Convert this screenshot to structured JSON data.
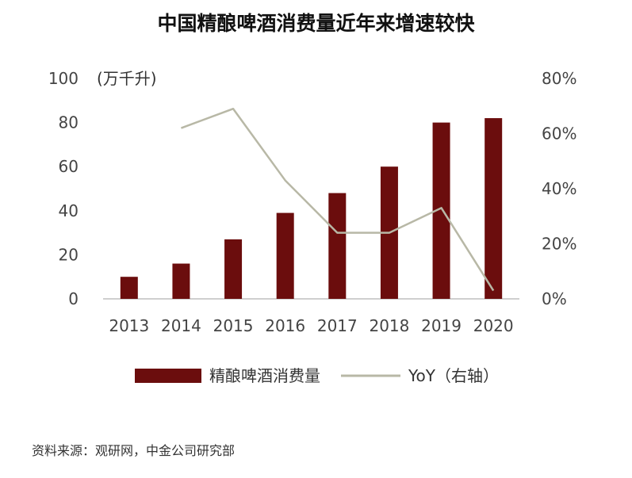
{
  "chart_data": {
    "type": "bar+line",
    "title": "中国精酿啤酒消费量近年来增速较快",
    "categories": [
      "2013",
      "2014",
      "2015",
      "2016",
      "2017",
      "2018",
      "2019",
      "2020"
    ],
    "left_axis": {
      "unit_label": "(万千升)",
      "min": 0,
      "max": 100,
      "ticks": [
        "0",
        "20",
        "40",
        "60",
        "80",
        "100"
      ]
    },
    "right_axis": {
      "min": 0,
      "max": 80,
      "ticks": [
        "0%",
        "20%",
        "40%",
        "60%",
        "80%"
      ]
    },
    "series": [
      {
        "name": "精酿啤酒消费量",
        "type": "bar",
        "axis": "left",
        "color": "#6b0d0d",
        "values": [
          10,
          16,
          27,
          39,
          48,
          60,
          80,
          82
        ]
      },
      {
        "name": "YoY（右轴）",
        "type": "line",
        "axis": "right",
        "color": "#b8b8a6",
        "values": [
          null,
          62,
          69,
          43,
          24,
          24,
          33,
          3
        ]
      }
    ],
    "legend": {
      "position": "bottom",
      "bar_label": "精酿啤酒消费量",
      "line_label": "YoY（右轴）"
    }
  },
  "source": "资料来源：观研网，中金公司研究部"
}
